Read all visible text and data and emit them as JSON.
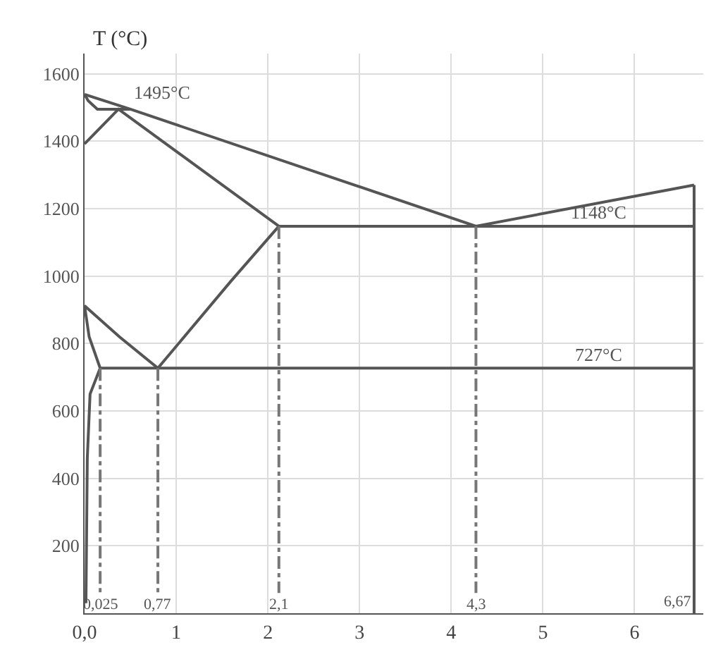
{
  "chart_data": {
    "type": "line",
    "ylabel": "T (°C)",
    "xlim": [
      0,
      6.75
    ],
    "ylim": [
      0,
      1660
    ],
    "xticks": [
      {
        "value": 0,
        "label": "0,0"
      },
      1,
      2,
      3,
      4,
      5,
      6
    ],
    "yticks": [
      200,
      400,
      600,
      800,
      1000,
      1200,
      1400,
      1600
    ],
    "grid": true,
    "series": [
      {
        "color": "#555555",
        "x": [
          0,
          0.5,
          4.27,
          6.65
        ],
        "values": [
          1539,
          1495,
          1148,
          1270
        ]
      },
      {
        "color": "#555555",
        "x": [
          0,
          0.04,
          0.14,
          0.5
        ],
        "values": [
          1539,
          1520,
          1495,
          1495
        ]
      },
      {
        "color": "#555555",
        "x": [
          0,
          0.37,
          2.12
        ],
        "values": [
          1392,
          1495,
          1148
        ]
      },
      {
        "color": "#555555",
        "x": [
          2.12,
          6.65
        ],
        "values": [
          1148,
          1148
        ]
      },
      {
        "color": "#555555",
        "x": [
          0.8,
          1.6,
          2.12
        ],
        "values": [
          727,
          986,
          1148
        ]
      },
      {
        "color": "#555555",
        "x": [
          0.17,
          0.05,
          0,
          0.38,
          0.8
        ],
        "values": [
          727,
          820,
          912,
          820,
          727
        ]
      },
      {
        "color": "#555555",
        "x": [
          0.17,
          0.06,
          0.03,
          0.015
        ],
        "values": [
          727,
          650,
          460,
          30
        ]
      },
      {
        "color": "#555555",
        "x": [
          0.17,
          6.65
        ],
        "values": [
          727,
          727
        ]
      },
      {
        "color": "#555555",
        "x": [
          6.65,
          6.65
        ],
        "values": [
          0,
          1270
        ]
      },
      {
        "color": "#777777",
        "line_style": "dashed",
        "x": [
          0.17,
          0.17
        ],
        "values": [
          727,
          60
        ]
      },
      {
        "color": "#777777",
        "line_style": "dashed",
        "x": [
          0.8,
          0.8
        ],
        "values": [
          727,
          60
        ]
      },
      {
        "color": "#777777",
        "line_style": "dashed",
        "x": [
          2.12,
          2.12
        ],
        "values": [
          1148,
          60
        ]
      },
      {
        "color": "#777777",
        "line_style": "dashed",
        "x": [
          4.27,
          4.27
        ],
        "values": [
          1148,
          60
        ]
      }
    ],
    "annotations": [
      {
        "text": "1495°C",
        "x": 0.5,
        "y": 1495
      },
      {
        "text": "1148°C",
        "x": 5.6,
        "y": 1148
      },
      {
        "text": "727°C",
        "x": 5.6,
        "y": 727
      },
      {
        "text": "0,025",
        "x": 0.17,
        "y": 60
      },
      {
        "text": "0,77",
        "x": 0.8,
        "y": 60
      },
      {
        "text": "2,1",
        "x": 2.12,
        "y": 60
      },
      {
        "text": "4,3",
        "x": 4.27,
        "y": 60
      },
      {
        "text": "6,67",
        "x": 6.65,
        "y": 0
      }
    ]
  }
}
